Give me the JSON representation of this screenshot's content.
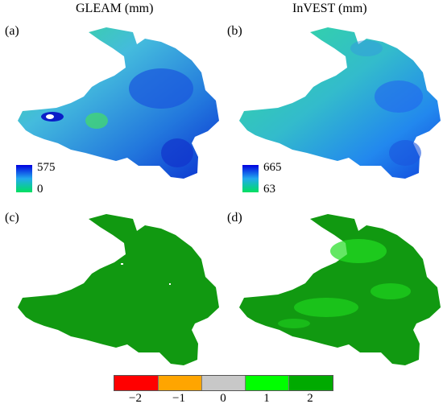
{
  "titles": {
    "left": "GLEAM (mm)",
    "right": "InVEST (mm)"
  },
  "panels": {
    "a": "(a)",
    "b": "(b)",
    "c": "(c)",
    "d": "(d)"
  },
  "legend_a": {
    "max": "575",
    "min": "0"
  },
  "legend_b": {
    "max": "665",
    "min": "63"
  },
  "category_bar": [
    {
      "label": "−2",
      "color": "#ff0000"
    },
    {
      "label": "−1",
      "color": "#ffa500"
    },
    {
      "label": "0",
      "color": "#c8c8c8"
    },
    {
      "label": "1",
      "color": "#00ff00"
    },
    {
      "label": "2",
      "color": "#00aa00"
    }
  ],
  "colors": {
    "gradient_low": "#00e060",
    "gradient_high": "#0000e0",
    "class1": "#22dd22",
    "class2": "#119911"
  }
}
